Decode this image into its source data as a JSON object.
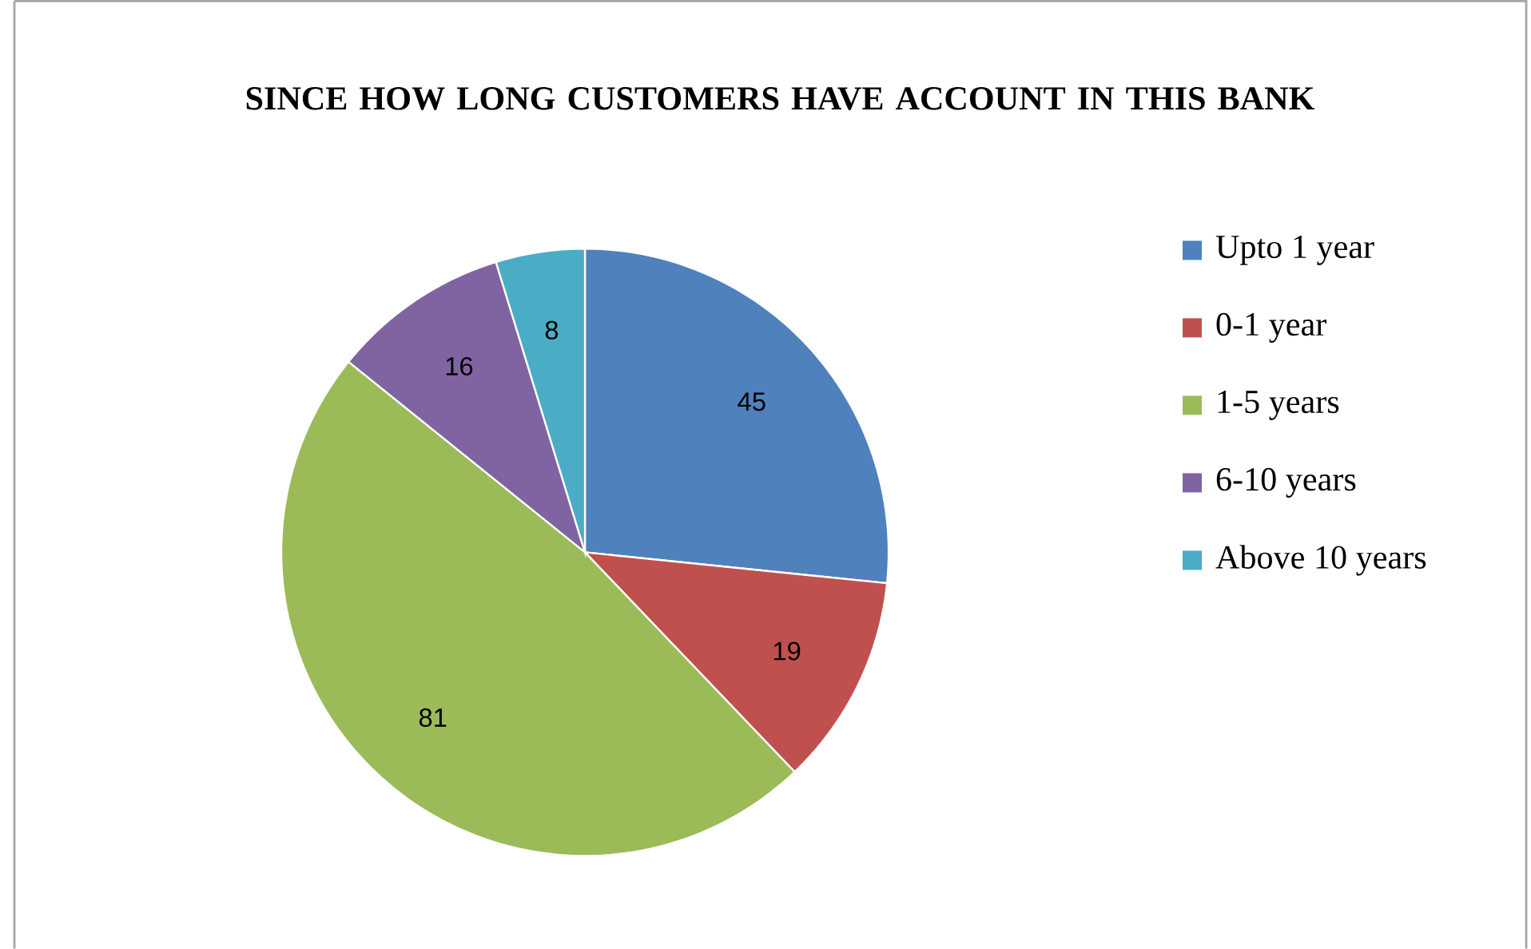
{
  "chart_data": {
    "type": "pie",
    "title": "SINCE HOW LONG CUSTOMERS HAVE ACCOUNT IN THIS BANK",
    "categories": [
      "Upto 1 year",
      "0-1 year",
      "1-5 years",
      "6-10 years",
      "Above 10 years"
    ],
    "values": [
      45,
      19,
      81,
      16,
      8
    ],
    "colors": [
      "#4f81bd",
      "#c0504d",
      "#9bbb59",
      "#8064a2",
      "#4bacc6"
    ],
    "data_labels": true,
    "legend": "right"
  }
}
